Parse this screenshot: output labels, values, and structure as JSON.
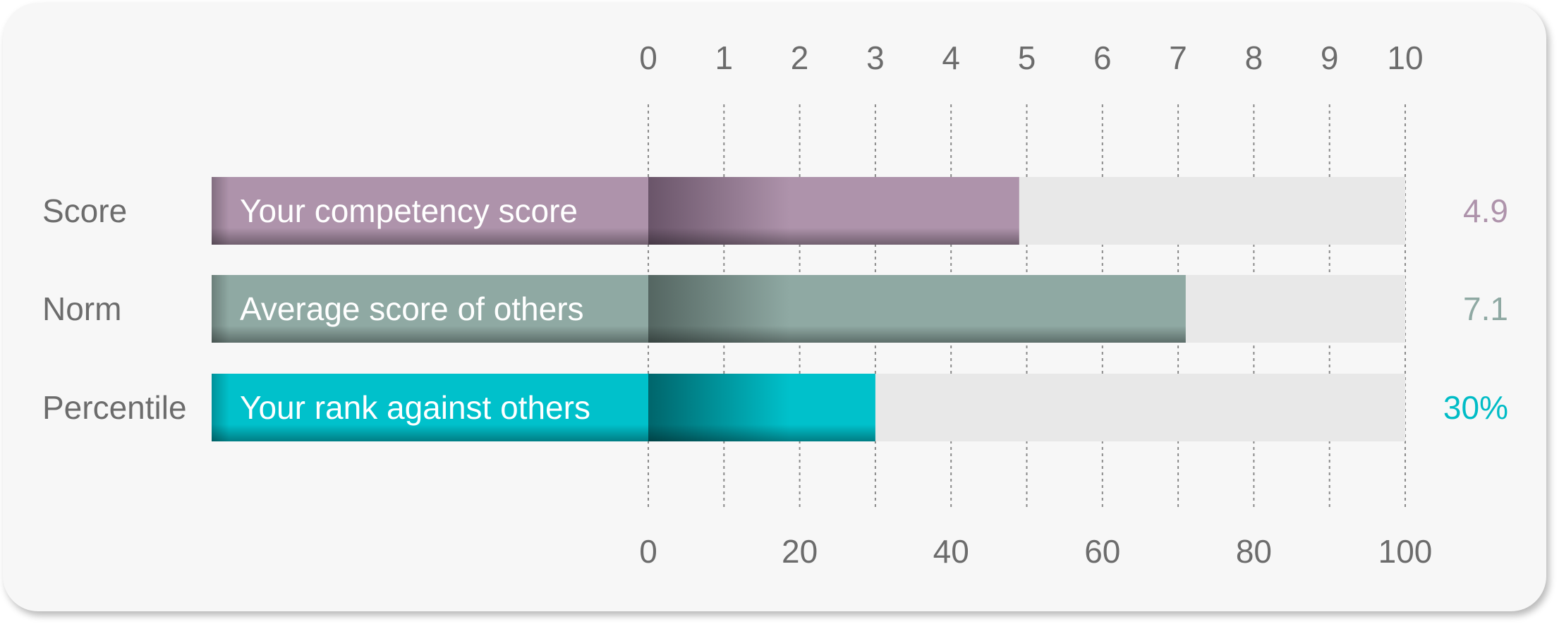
{
  "chart_data": {
    "type": "bar",
    "orientation": "horizontal",
    "top_axis": {
      "ticks": [
        "0",
        "1",
        "2",
        "3",
        "4",
        "5",
        "6",
        "7",
        "8",
        "9",
        "10"
      ],
      "range": [
        0,
        10
      ]
    },
    "bottom_axis": {
      "ticks": [
        "0",
        "20",
        "40",
        "60",
        "80",
        "100"
      ],
      "range": [
        0,
        100
      ]
    },
    "grid": true,
    "rows": [
      {
        "label": "Score",
        "caption": "Your competency score",
        "value": 4.9,
        "display": "4.9",
        "max": 10,
        "color": "#ae93ab",
        "dark": "#5e4a5e",
        "text_color": "#ae93ab"
      },
      {
        "label": "Norm",
        "caption": "Average score of others",
        "value": 7.1,
        "display": "7.1",
        "max": 10,
        "color": "#8fa9a3",
        "dark": "#4a5a56",
        "text_color": "#8fa9a3"
      },
      {
        "label": "Percentile",
        "caption": "Your rank against others",
        "value": 30,
        "display": "30%",
        "max": 100,
        "color": "#00c1cb",
        "dark": "#00555a",
        "text_color": "#00bcc6"
      }
    ],
    "track_color": "#e8e8e8"
  }
}
